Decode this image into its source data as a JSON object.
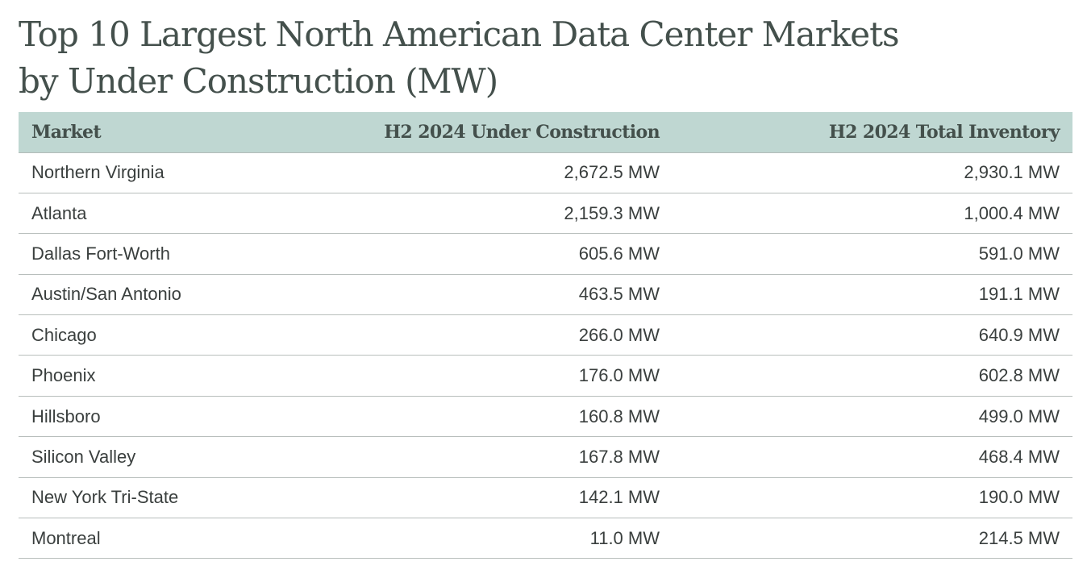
{
  "title": {
    "line1": "Top 10 Largest North American Data Center Markets",
    "line2": "by Under Construction (MW)"
  },
  "table": {
    "headers": [
      "Market",
      "H2 2024 Under Construction",
      "H2 2024 Total Inventory"
    ],
    "rows": [
      [
        "Northern Virginia",
        "2,672.5 MW",
        "2,930.1 MW"
      ],
      [
        "Atlanta",
        "2,159.3 MW",
        "1,000.4 MW"
      ],
      [
        "Dallas Fort-Worth",
        "605.6 MW",
        "591.0 MW"
      ],
      [
        "Austin/San Antonio",
        "463.5 MW",
        "191.1 MW"
      ],
      [
        "Chicago",
        "266.0 MW",
        "640.9 MW"
      ],
      [
        "Phoenix",
        "176.0 MW",
        "602.8 MW"
      ],
      [
        "Hillsboro",
        "160.8 MW",
        "499.0 MW"
      ],
      [
        "Silicon Valley",
        "167.8 MW",
        "468.4 MW"
      ],
      [
        "New York Tri-State",
        "142.1 MW",
        "190.0 MW"
      ],
      [
        "Montreal",
        "11.0 MW",
        "214.5 MW"
      ]
    ]
  },
  "colors": {
    "header_background": "#bfd7d2",
    "title_text": "#44504c",
    "row_divider": "#b8bebc"
  }
}
